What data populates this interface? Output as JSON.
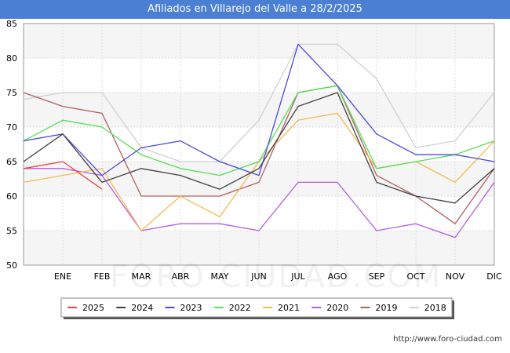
{
  "chart_data": {
    "type": "line",
    "title": "Afiliados en Villarejo del Valle a 28/2/2025",
    "categories": [
      "",
      "ENE",
      "FEB",
      "MAR",
      "ABR",
      "MAY",
      "JUN",
      "JUL",
      "AGO",
      "SEP",
      "OCT",
      "NOV",
      "DIC"
    ],
    "ylim": [
      50,
      85
    ],
    "yticks": [
      50,
      55,
      60,
      65,
      70,
      75,
      80,
      85
    ],
    "series": [
      {
        "name": "2025",
        "color": "#e8453c",
        "values": [
          64,
          65,
          61,
          null,
          null,
          null,
          null,
          null,
          null,
          null,
          null,
          null,
          null
        ]
      },
      {
        "name": "2024",
        "color": "#404040",
        "values": [
          65,
          69,
          62,
          64,
          63,
          61,
          64,
          73,
          75,
          62,
          60,
          59,
          64
        ]
      },
      {
        "name": "2023",
        "color": "#4a4ae0",
        "values": [
          68,
          69,
          63,
          67,
          68,
          65,
          63,
          82,
          76,
          69,
          66,
          66,
          65
        ]
      },
      {
        "name": "2022",
        "color": "#55e055",
        "values": [
          68,
          71,
          70,
          66,
          64,
          63,
          65,
          75,
          76,
          64,
          65,
          66,
          68
        ]
      },
      {
        "name": "2021",
        "color": "#f5b94e",
        "values": [
          62,
          63,
          64,
          55,
          60,
          57,
          65,
          71,
          72,
          64,
          65,
          62,
          68
        ]
      },
      {
        "name": "2020",
        "color": "#b45ee0",
        "values": [
          64,
          64,
          63,
          55,
          56,
          56,
          55,
          62,
          62,
          55,
          56,
          54,
          62
        ]
      },
      {
        "name": "2019",
        "color": "#b06060",
        "values": [
          75,
          73,
          72,
          60,
          60,
          60,
          62,
          75,
          76,
          63,
          60,
          56,
          64
        ]
      },
      {
        "name": "2018",
        "color": "#d0d0d0",
        "values": [
          74,
          75,
          75,
          67,
          65,
          65,
          71,
          82,
          82,
          77,
          67,
          68,
          75
        ]
      }
    ]
  },
  "source_text": "http://www.foro-ciudad.com",
  "watermark_text": "FORO-CIUDAD.COM"
}
